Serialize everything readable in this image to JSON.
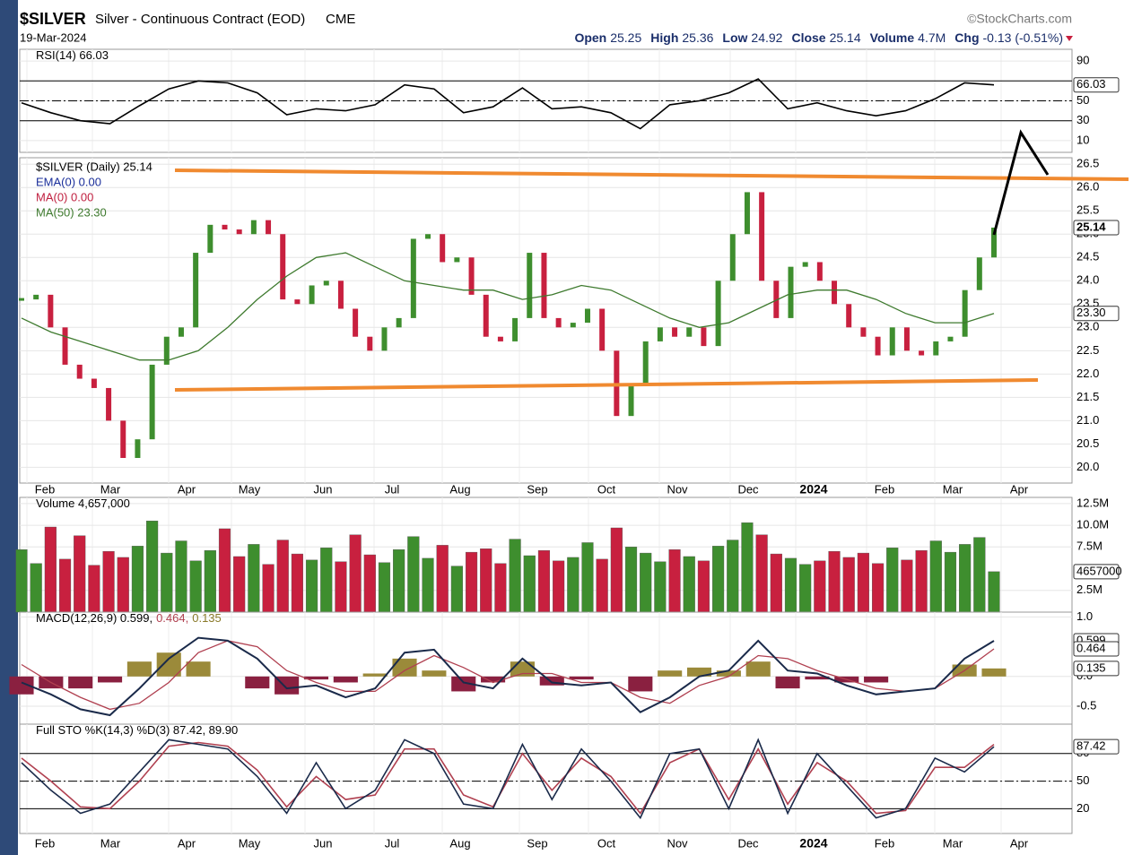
{
  "header": {
    "symbol": "$SILVER",
    "name": "Silver - Continuous Contract (EOD)",
    "exchange": "CME",
    "date": "19-Mar-2024",
    "brand": "©StockCharts.com",
    "quote": [
      {
        "label": "Open",
        "value": "25.25"
      },
      {
        "label": "High",
        "value": "25.36"
      },
      {
        "label": "Low",
        "value": "24.92"
      },
      {
        "label": "Close",
        "value": "25.14"
      },
      {
        "label": "Volume",
        "value": "4.7M"
      },
      {
        "label": "Chg",
        "value": "-0.13 (-0.51%)"
      }
    ]
  },
  "x_labels": [
    "Feb",
    "Mar",
    "Apr",
    "May",
    "Jun",
    "Jul",
    "Aug",
    "Sep",
    "Oct",
    "Nov",
    "Dec",
    "2024",
    "Feb",
    "Mar",
    "Apr"
  ],
  "chart_data": [
    {
      "type": "line",
      "legend": [
        {
          "text": "RSI(14) 66.03",
          "color": "#000000"
        }
      ],
      "ylim": [
        0,
        100
      ],
      "yticks": [
        10,
        30,
        50,
        90
      ],
      "levels": [
        70,
        50,
        30
      ],
      "series": [
        {
          "color": "#000000",
          "last_label": "66.03",
          "values": [
            48,
            38,
            30,
            27,
            45,
            62,
            70,
            68,
            58,
            36,
            42,
            40,
            46,
            66,
            62,
            38,
            44,
            63,
            42,
            44,
            38,
            22,
            46,
            50,
            58,
            72,
            42,
            48,
            40,
            35,
            40,
            52,
            68,
            66.03
          ]
        }
      ]
    },
    {
      "type": "stock",
      "legend": [
        {
          "text": "$SILVER (Daily) 25.14",
          "color": "#000000"
        },
        {
          "text": "EMA(0) 0.00",
          "color": "#1a2e9a"
        },
        {
          "text": "MA(0) 0.00",
          "color": "#c02040"
        },
        {
          "text": "MA(50) 23.30",
          "color": "#3e7a2e"
        }
      ],
      "up_color": "#3e8e2e",
      "down_color": "#c8203f",
      "ylim": [
        19.7,
        26.6
      ],
      "yticks": [
        {
          "value": 20,
          "label": "20.0"
        },
        20.5,
        {
          "value": 21,
          "label": "21.0"
        },
        21.5,
        {
          "value": 22,
          "label": "22.0"
        },
        22.5,
        {
          "value": 23,
          "label": "23.0"
        },
        23.5,
        {
          "value": 24,
          "label": "24.0"
        },
        24.5,
        {
          "value": 25,
          "label": "25.0"
        },
        25.5,
        {
          "value": 26,
          "label": "26.0"
        },
        26.5
      ],
      "series": [
        {
          "color": "#000000",
          "last_label": "25.14",
          "values": [
            23.6,
            23.7,
            23.0,
            22.2,
            21.9,
            21.7,
            21.0,
            20.2,
            20.6,
            22.2,
            22.8,
            23.0,
            24.6,
            25.2,
            25.1,
            25.0,
            25.3,
            25.0,
            23.6,
            23.5,
            23.9,
            24.0,
            23.4,
            22.8,
            22.5,
            23.0,
            23.2,
            24.9,
            25.0,
            24.4,
            24.5,
            23.7,
            22.8,
            22.7,
            23.2,
            24.6,
            23.2,
            23.0,
            23.1,
            23.4,
            22.5,
            21.1,
            21.8,
            22.7,
            23.0,
            22.8,
            23.0,
            22.6,
            24.0,
            25.0,
            25.9,
            24.0,
            23.2,
            24.3,
            24.4,
            24.0,
            23.5,
            23.0,
            22.8,
            22.4,
            23.0,
            22.5,
            22.4,
            22.7,
            22.8,
            23.8,
            24.5,
            25.14
          ]
        },
        {
          "color": "#3e7a2e",
          "last_label": "23.30",
          "values": [
            23.2,
            22.9,
            22.7,
            22.5,
            22.3,
            22.3,
            22.5,
            23.0,
            23.6,
            24.1,
            24.5,
            24.6,
            24.3,
            24.0,
            23.9,
            23.8,
            23.8,
            23.6,
            23.7,
            23.9,
            23.8,
            23.5,
            23.2,
            23.0,
            23.1,
            23.4,
            23.7,
            23.8,
            23.8,
            23.6,
            23.3,
            23.1,
            23.1,
            23.3
          ]
        }
      ]
    },
    {
      "type": "bar",
      "legend": [
        {
          "text": "Volume 4,657,000",
          "color": "#000000"
        }
      ],
      "up_color": "#3e8e2e",
      "down_color": "#c8203f",
      "ylim": [
        0,
        13000000
      ],
      "yticks": [
        {
          "value": 2500000,
          "label": "2.5M"
        },
        {
          "value": 7500000,
          "label": "7.5M"
        },
        {
          "value": 10000000,
          "label": "10.0M"
        },
        {
          "value": 12500000,
          "label": "12.5M"
        }
      ],
      "series": [
        {
          "color": "#3e8e2e",
          "last_label": "4657000",
          "values": [
            7200000,
            5600000,
            9800000,
            6100000,
            8800000,
            5400000,
            7000000,
            6300000,
            7600000,
            10500000,
            6800000,
            8200000,
            5900000,
            7100000,
            9600000,
            6400000,
            7800000,
            5500000,
            8300000,
            6700000,
            6000000,
            7400000,
            5800000,
            8900000,
            6600000,
            5700000,
            7200000,
            8700000,
            6200000,
            7700000,
            5300000,
            6900000,
            7300000,
            5600000,
            8400000,
            6500000,
            7100000,
            5900000,
            6300000,
            8000000,
            6100000,
            9700000,
            7500000,
            6800000,
            5800000,
            7200000,
            6400000,
            5900000,
            7600000,
            8300000,
            10300000,
            8900000,
            6700000,
            6200000,
            5500000,
            5900000,
            7000000,
            6300000,
            6800000,
            5600000,
            7400000,
            6000000,
            7100000,
            8200000,
            6900000,
            7800000,
            8600000,
            4657000
          ]
        }
      ]
    },
    {
      "type": "macd",
      "legend": [
        {
          "text": "MACD(12,26,9) 0.599,",
          "color": "#000000"
        },
        {
          "text": "0.464,",
          "color": "#b04050"
        },
        {
          "text": "0.135",
          "color": "#8a7a2a"
        }
      ],
      "ylim": [
        -0.8,
        1.05
      ],
      "yticks": [
        -0.5,
        {
          "value": 0,
          "label": "0.0"
        },
        {
          "value": 1,
          "label": "1.0"
        }
      ],
      "series": [
        {
          "color": "#1a2a4a",
          "last_label": "0.599",
          "values": [
            -0.1,
            -0.3,
            -0.55,
            -0.65,
            -0.2,
            0.3,
            0.65,
            0.6,
            0.3,
            -0.2,
            -0.15,
            -0.35,
            -0.2,
            0.4,
            0.45,
            -0.1,
            -0.2,
            0.3,
            -0.1,
            -0.15,
            -0.1,
            -0.6,
            -0.35,
            0.0,
            0.1,
            0.6,
            0.1,
            0.05,
            -0.15,
            -0.3,
            -0.25,
            -0.2,
            0.3,
            0.599
          ]
        },
        {
          "color": "#b04050",
          "last_label": "0.464",
          "values": [
            0.2,
            -0.1,
            -0.35,
            -0.55,
            -0.45,
            -0.1,
            0.4,
            0.6,
            0.5,
            0.1,
            -0.1,
            -0.25,
            -0.25,
            0.1,
            0.35,
            0.15,
            -0.1,
            0.05,
            0.05,
            -0.1,
            -0.1,
            -0.35,
            -0.45,
            -0.15,
            0.0,
            0.35,
            0.3,
            0.1,
            -0.05,
            -0.2,
            -0.25,
            -0.2,
            0.1,
            0.464
          ]
        },
        {
          "color": "#9b8a3a",
          "down_color": "#8a2040",
          "last_label": "0.135",
          "values": [
            -0.3,
            -0.2,
            -0.2,
            -0.1,
            0.25,
            0.4,
            0.25,
            0,
            -0.2,
            -0.3,
            -0.05,
            -0.1,
            0.05,
            0.3,
            0.1,
            -0.25,
            -0.1,
            0.25,
            -0.15,
            -0.05,
            0,
            -0.25,
            0.1,
            0.15,
            0.1,
            0.25,
            -0.2,
            -0.05,
            -0.1,
            -0.1,
            0,
            0,
            0.2,
            0.135
          ]
        }
      ]
    },
    {
      "type": "line",
      "legend": [
        {
          "text": "Full STO %K(14,3) %D(3) 87.42, 89.90",
          "color": "#000000"
        }
      ],
      "ylim": [
        -5,
        110
      ],
      "yticks": [
        20,
        50,
        80
      ],
      "levels": [
        80,
        50,
        20
      ],
      "series": [
        {
          "color": "#1a2a4a",
          "last_label": "87.42",
          "values": [
            70,
            40,
            15,
            25,
            60,
            95,
            90,
            85,
            55,
            15,
            70,
            20,
            40,
            95,
            80,
            25,
            20,
            90,
            30,
            85,
            50,
            10,
            80,
            85,
            20,
            95,
            15,
            80,
            45,
            10,
            20,
            75,
            60,
            87.42
          ]
        },
        {
          "color": "#b04050",
          "values": [
            75,
            50,
            22,
            20,
            50,
            88,
            92,
            88,
            62,
            22,
            55,
            30,
            35,
            85,
            85,
            35,
            22,
            80,
            40,
            75,
            55,
            15,
            70,
            85,
            30,
            85,
            25,
            70,
            50,
            15,
            18,
            65,
            65,
            89.9
          ]
        }
      ]
    }
  ]
}
